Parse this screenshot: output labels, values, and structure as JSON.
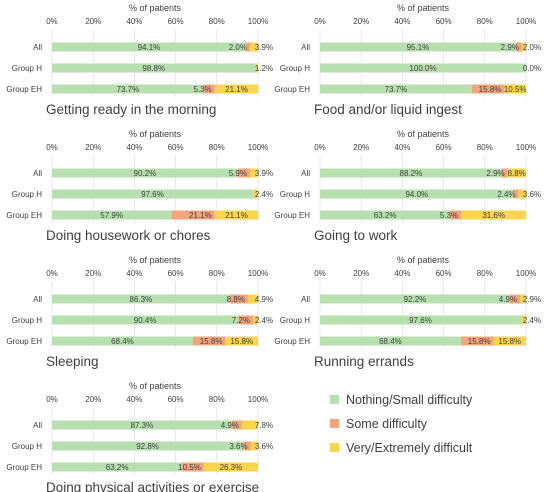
{
  "colors": {
    "nothing": "#b7dfb0",
    "some": "#f4a47a",
    "very": "#fbd64d",
    "text": "#404040",
    "title": "#404040",
    "grid": "#d9d9d9"
  },
  "legend": {
    "items": [
      {
        "label": "Nothing/Small difficulty",
        "color": "#b7dfb0"
      },
      {
        "label": "Some difficulty",
        "color": "#f4a47a"
      },
      {
        "label": "Very/Extremely difficult",
        "color": "#fbd64d"
      }
    ]
  },
  "chart_data": [
    {
      "type": "bar",
      "stacked": true,
      "orientation": "horizontal",
      "title": "Getting ready in the morning",
      "xlabel": "% of patients",
      "xlim": [
        0,
        100
      ],
      "xticks": [
        "0%",
        "20%",
        "40%",
        "60%",
        "80%",
        "100%"
      ],
      "categories": [
        "All",
        "Group H",
        "Group EH"
      ],
      "series": [
        {
          "name": "Nothing/Small difficulty",
          "values": [
            94.1,
            98.8,
            73.7
          ],
          "labels": [
            "94.1%",
            "98.8%",
            "73.7%"
          ]
        },
        {
          "name": "Some difficulty",
          "values": [
            2.0,
            0.0,
            5.3
          ],
          "labels": [
            "2.0%",
            "",
            "5.3%"
          ]
        },
        {
          "name": "Very/Extremely difficult",
          "values": [
            3.9,
            1.2,
            21.1
          ],
          "labels": [
            "3.9%",
            "1.2%",
            "21.1%"
          ]
        }
      ]
    },
    {
      "type": "bar",
      "stacked": true,
      "orientation": "horizontal",
      "title": "Food and/or liquid ingest",
      "xlabel": "% of patients",
      "xlim": [
        0,
        100
      ],
      "xticks": [
        "0%",
        "20%",
        "40%",
        "60%",
        "80%",
        "100%"
      ],
      "categories": [
        "All",
        "Group H",
        "Group EH"
      ],
      "series": [
        {
          "name": "Nothing/Small difficulty",
          "values": [
            95.1,
            100.0,
            73.7
          ],
          "labels": [
            "95.1%",
            "100.0%",
            "73.7%"
          ]
        },
        {
          "name": "Some difficulty",
          "values": [
            2.9,
            0.0,
            15.8
          ],
          "labels": [
            "2.9%",
            "",
            "15.8%"
          ]
        },
        {
          "name": "Very/Extremely difficult",
          "values": [
            2.0,
            0.0,
            10.5
          ],
          "labels": [
            "2.0%",
            "0.0%",
            "10.5%"
          ]
        }
      ]
    },
    {
      "type": "bar",
      "stacked": true,
      "orientation": "horizontal",
      "title": "Doing housework or chores",
      "xlabel": "% of patients",
      "xlim": [
        0,
        100
      ],
      "xticks": [
        "0%",
        "20%",
        "40%",
        "60%",
        "80%",
        "100%"
      ],
      "categories": [
        "All",
        "Group H",
        "Group EH"
      ],
      "series": [
        {
          "name": "Nothing/Small difficulty",
          "values": [
            90.2,
            97.6,
            57.9
          ],
          "labels": [
            "90.2%",
            "97.6%",
            "57.9%"
          ]
        },
        {
          "name": "Some difficulty",
          "values": [
            5.9,
            0.0,
            21.1
          ],
          "labels": [
            "5.9%",
            "",
            "21.1%"
          ]
        },
        {
          "name": "Very/Extremely difficult",
          "values": [
            3.9,
            2.4,
            21.1
          ],
          "labels": [
            "3.9%",
            "2.4%",
            "21.1%"
          ]
        }
      ]
    },
    {
      "type": "bar",
      "stacked": true,
      "orientation": "horizontal",
      "title": "Going to work",
      "xlabel": "% of patients",
      "xlim": [
        0,
        100
      ],
      "xticks": [
        "0%",
        "20%",
        "40%",
        "60%",
        "80%",
        "100%"
      ],
      "categories": [
        "All",
        "Group H",
        "Group EH"
      ],
      "series": [
        {
          "name": "Nothing/Small difficulty",
          "values": [
            88.2,
            94.0,
            63.2
          ],
          "labels": [
            "88.2%",
            "94.0%",
            "63.2%"
          ]
        },
        {
          "name": "Some difficulty",
          "values": [
            2.9,
            2.4,
            5.3
          ],
          "labels": [
            "2.9%",
            "2.4%",
            "5.3%"
          ]
        },
        {
          "name": "Very/Extremely difficult",
          "values": [
            8.8,
            3.6,
            31.6
          ],
          "labels": [
            "8.8%",
            "3.6%",
            "31.6%"
          ]
        }
      ]
    },
    {
      "type": "bar",
      "stacked": true,
      "orientation": "horizontal",
      "title": "Sleeping",
      "xlabel": "% of patients",
      "xlim": [
        0,
        100
      ],
      "xticks": [
        "0%",
        "20%",
        "40%",
        "60%",
        "80%",
        "100%"
      ],
      "categories": [
        "All",
        "Group H",
        "Group EH"
      ],
      "series": [
        {
          "name": "Nothing/Small difficulty",
          "values": [
            86.3,
            90.4,
            68.4
          ],
          "labels": [
            "86.3%",
            "90.4%",
            "68.4%"
          ]
        },
        {
          "name": "Some difficulty",
          "values": [
            8.8,
            7.2,
            15.8
          ],
          "labels": [
            "8.8%",
            "7.2%",
            "15.8%"
          ]
        },
        {
          "name": "Very/Extremely difficult",
          "values": [
            4.9,
            2.4,
            15.8
          ],
          "labels": [
            "4.9%",
            "2.4%",
            "15.8%"
          ]
        }
      ]
    },
    {
      "type": "bar",
      "stacked": true,
      "orientation": "horizontal",
      "title": "Running errands",
      "xlabel": "% of patients",
      "xlim": [
        0,
        100
      ],
      "xticks": [
        "0%",
        "20%",
        "40%",
        "60%",
        "80%",
        "100%"
      ],
      "categories": [
        "All",
        "Group H",
        "Group EH"
      ],
      "series": [
        {
          "name": "Nothing/Small difficulty",
          "values": [
            92.2,
            97.6,
            68.4
          ],
          "labels": [
            "92.2%",
            "97.6%",
            "68.4%"
          ]
        },
        {
          "name": "Some difficulty",
          "values": [
            4.9,
            0.0,
            15.8
          ],
          "labels": [
            "4.9%",
            "",
            "15.8%"
          ]
        },
        {
          "name": "Very/Extremely difficult",
          "values": [
            2.9,
            2.4,
            15.8
          ],
          "labels": [
            "2.9%",
            "2.4%",
            "15.8%"
          ]
        }
      ]
    },
    {
      "type": "bar",
      "stacked": true,
      "orientation": "horizontal",
      "title": "Doing physical activities or exercise",
      "xlabel": "% of patients",
      "xlim": [
        0,
        100
      ],
      "xticks": [
        "0%",
        "20%",
        "40%",
        "60%",
        "80%",
        "100%"
      ],
      "categories": [
        "All",
        "Group H",
        "Group EH"
      ],
      "series": [
        {
          "name": "Nothing/Small difficulty",
          "values": [
            87.3,
            92.8,
            63.2
          ],
          "labels": [
            "87.3%",
            "92.8%",
            "63.2%"
          ]
        },
        {
          "name": "Some difficulty",
          "values": [
            4.9,
            3.6,
            10.5
          ],
          "labels": [
            "4.9%",
            "3.6%",
            "10.5%"
          ]
        },
        {
          "name": "Very/Extremely difficult",
          "values": [
            7.8,
            3.6,
            26.3
          ],
          "labels": [
            "7.8%",
            "3.6%",
            "26.3%"
          ]
        }
      ]
    }
  ]
}
